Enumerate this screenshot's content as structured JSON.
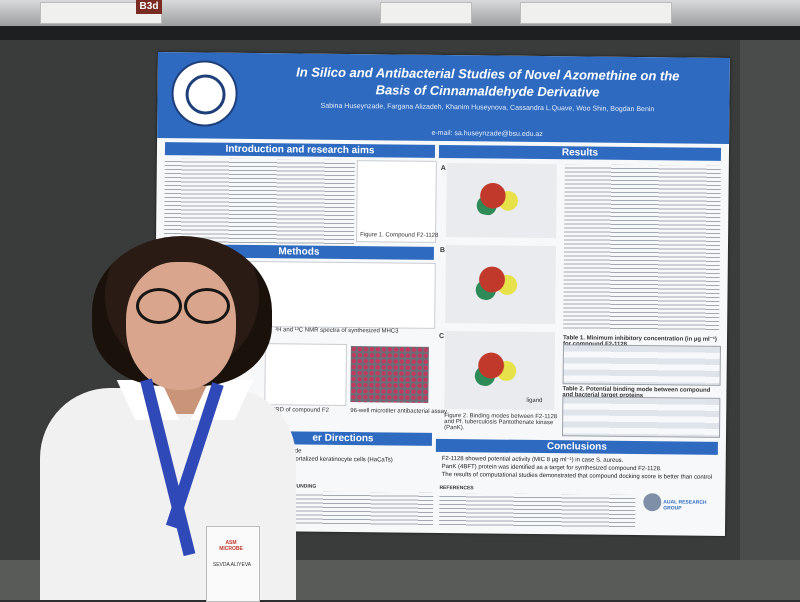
{
  "room": {
    "sign_label": "B3d"
  },
  "poster": {
    "title_line1": "In Silico and Antibacterial Studies of Novel Azomethine on the",
    "title_line2": "Basis of Cinnamaldehyde Derivative",
    "authors": "Sabina Huseynzade, Fargana Alizadeh, Khanim Huseynova, Cassandra L.Quave, Woo Shin, Bogdan Benin",
    "email": "e-mail: sa.huseynzade@bsu.edu.az",
    "sections": {
      "intro": "Introduction and research aims",
      "methods": "Methods",
      "results": "Results",
      "future": "er Directions",
      "conclusions": "Conclusions",
      "funding": "FUNDING",
      "references": "REFERENCES"
    },
    "figure_captions": {
      "compound": "Figure 1. Compound F2-1128",
      "nmr": "¹H and ¹³C NMR spectra of synthesized MHC3",
      "xrd": "er XRD of compound F2",
      "microtiter": "96-well microtiter antibacterial assay",
      "binding": "Figure 2. Binding modes between F2-1128 and Pf. tuberculosis Pantothenate kinase (PanK).",
      "ligand": "ligand"
    },
    "panels": [
      "A",
      "B",
      "C"
    ],
    "future_items": [
      "cinnamaldehyde",
      "al human immortalized keratinocyte cells (HaCaTs)",
      "S. aureus"
    ],
    "table_titles": {
      "mic": "Table 1. Minimum inhibitory concentration (in µg ml⁻¹) for compound F2-1128",
      "binding": "Table 2. Potential binding mode between compound and bacterial target proteins"
    },
    "conclusions": [
      "F2-1128 showed potential activity (MIC 8 µg ml⁻¹) in case S. aureus.",
      "PanK (4BFT) protein was identified as a target for synthesized compound F2-1128.",
      "The results of computational studies demonstrated that compound docking score is better than control"
    ],
    "footer_group": "AUAL RESEARCH GROUP"
  },
  "badge": {
    "logo": "ASM MICROBE",
    "name": "SEVDA ALIYEVA"
  }
}
